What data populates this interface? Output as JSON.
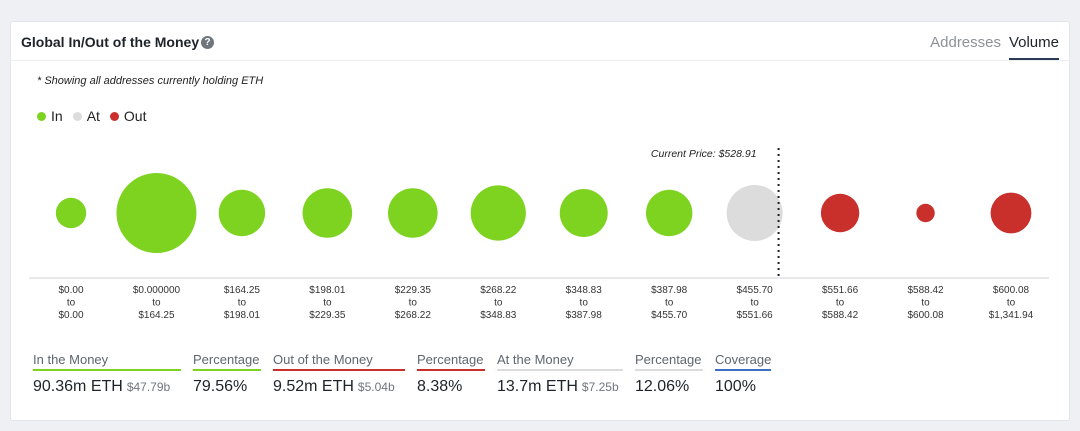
{
  "header": {
    "title": "Global In/Out of the Money",
    "help_icon": "question-icon",
    "tabs": [
      {
        "label": "Addresses",
        "active": false
      },
      {
        "label": "Volume",
        "active": true
      }
    ]
  },
  "note": "* Showing all addresses currently holding ETH",
  "legend": [
    {
      "label": "In",
      "color": "#7ed321"
    },
    {
      "label": "At",
      "color": "#dcdcdc"
    },
    {
      "label": "Out",
      "color": "#c9302c"
    }
  ],
  "chart_data": {
    "type": "bubble",
    "current_price_label": "Current Price: $528.91",
    "current_price_after_index": 8,
    "buckets": [
      {
        "range": [
          "$0.00",
          "to",
          "$0.00"
        ],
        "status": "In",
        "relative_size": 0.38
      },
      {
        "range": [
          "$0.000000",
          "to",
          "$164.25"
        ],
        "status": "In",
        "relative_size": 1.0
      },
      {
        "range": [
          "$164.25",
          "to",
          "$198.01"
        ],
        "status": "In",
        "relative_size": 0.58
      },
      {
        "range": [
          "$198.01",
          "to",
          "$229.35"
        ],
        "status": "In",
        "relative_size": 0.62
      },
      {
        "range": [
          "$229.35",
          "to",
          "$268.22"
        ],
        "status": "In",
        "relative_size": 0.62
      },
      {
        "range": [
          "$268.22",
          "to",
          "$348.83"
        ],
        "status": "In",
        "relative_size": 0.69
      },
      {
        "range": [
          "$348.83",
          "to",
          "$387.98"
        ],
        "status": "In",
        "relative_size": 0.6
      },
      {
        "range": [
          "$387.98",
          "to",
          "$455.70"
        ],
        "status": "In",
        "relative_size": 0.58
      },
      {
        "range": [
          "$455.70",
          "to",
          "$551.66"
        ],
        "status": "At",
        "relative_size": 0.7
      },
      {
        "range": [
          "$551.66",
          "to",
          "$588.42"
        ],
        "status": "Out",
        "relative_size": 0.48
      },
      {
        "range": [
          "$588.42",
          "to",
          "$600.08"
        ],
        "status": "Out",
        "relative_size": 0.23
      },
      {
        "range": [
          "$600.08",
          "to",
          "$1,341.94"
        ],
        "status": "Out",
        "relative_size": 0.51
      }
    ]
  },
  "stats": [
    {
      "label": "In the Money",
      "value": "90.36m ETH",
      "sub": "$47.79b",
      "color": "#7ed321"
    },
    {
      "label": "Percentage",
      "value": "79.56%",
      "sub": "",
      "color": "#7ed321"
    },
    {
      "label": "Out of the Money",
      "value": "9.52m ETH",
      "sub": "$5.04b",
      "color": "#c9302c"
    },
    {
      "label": "Percentage",
      "value": "8.38%",
      "sub": "",
      "color": "#c9302c"
    },
    {
      "label": "At the Money",
      "value": "13.7m ETH",
      "sub": "$7.25b",
      "color": "#dcdcdc"
    },
    {
      "label": "Percentage",
      "value": "12.06%",
      "sub": "",
      "color": "#dcdcdc"
    },
    {
      "label": "Coverage",
      "value": "100%",
      "sub": "",
      "color": "#3a6fc4"
    }
  ]
}
